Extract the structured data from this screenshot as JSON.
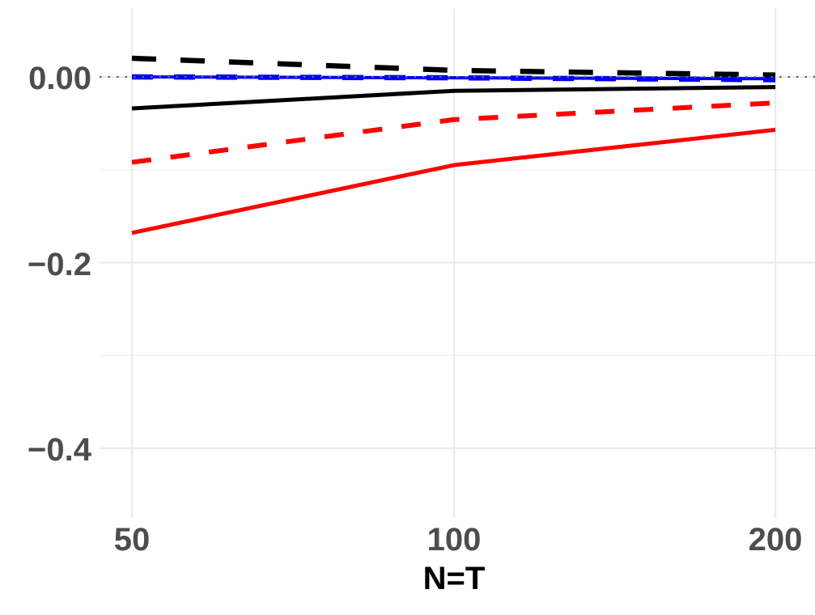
{
  "chart_data": {
    "type": "line",
    "title": "",
    "xlabel": "N=T",
    "ylabel": "",
    "x": [
      50,
      100,
      200
    ],
    "x_tick_labels": [
      "50",
      "100",
      "200"
    ],
    "x_scale": "log2",
    "y_ticks": [
      0.0,
      -0.2,
      -0.4
    ],
    "y_tick_labels": [
      "0.00",
      "−0.2",
      "−0.4"
    ],
    "y_minor_ticks": [
      -0.1,
      -0.3
    ],
    "ylim": [
      -0.475,
      0.075
    ],
    "grid": true,
    "legend": "none",
    "reference_line": {
      "y": 0.0,
      "style": "dotted",
      "color": "#666666"
    },
    "series": [
      {
        "name": "black-dashed",
        "color": "#000000",
        "style": "dashed",
        "values": [
          0.02,
          0.007,
          0.002
        ]
      },
      {
        "name": "blue-solid",
        "color": "#0000ff",
        "style": "solid",
        "values": [
          0.0,
          -0.001,
          -0.002
        ]
      },
      {
        "name": "blue-dashed",
        "color": "#0000ff",
        "style": "dashed",
        "values": [
          0.0,
          -0.001,
          -0.003
        ]
      },
      {
        "name": "black-solid",
        "color": "#000000",
        "style": "solid",
        "values": [
          -0.034,
          -0.015,
          -0.011
        ]
      },
      {
        "name": "red-dashed",
        "color": "#ff0000",
        "style": "dashed",
        "values": [
          -0.092,
          -0.046,
          -0.028
        ]
      },
      {
        "name": "red-solid",
        "color": "#ff0000",
        "style": "solid",
        "values": [
          -0.168,
          -0.095,
          -0.057
        ]
      }
    ]
  },
  "axes": {
    "x_title": "N=T",
    "x_ticks": [
      "50",
      "100",
      "200"
    ],
    "y_ticks": [
      "0.00",
      "−0.2",
      "−0.4"
    ]
  }
}
